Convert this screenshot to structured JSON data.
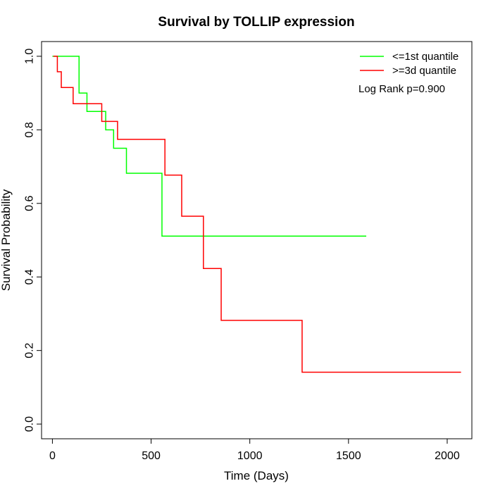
{
  "chart_data": {
    "type": "line",
    "title": "Survival by TOLLIP expression",
    "xlabel": "Time (Days)",
    "ylabel": "Survival Probability",
    "xlim": [
      -55,
      2125
    ],
    "ylim": [
      -0.04,
      1.04
    ],
    "xticks": [
      0,
      500,
      1000,
      1500,
      2000
    ],
    "xtick_labels": [
      "0",
      "500",
      "1000",
      "1500",
      "2000"
    ],
    "yticks": [
      0.0,
      0.2,
      0.4,
      0.6,
      0.8,
      1.0
    ],
    "ytick_labels": [
      "0.0",
      "0.2",
      "0.4",
      "0.6",
      "0.8",
      "1.0"
    ],
    "grid": false,
    "legend_position": "top-right",
    "annotation": "Log Rank p=0.900",
    "series": [
      {
        "name": "<=1st quantile",
        "color": "#00ff00",
        "step": true,
        "x": [
          0,
          130,
          135,
          175,
          270,
          310,
          375,
          555,
          1590
        ],
        "y": [
          1.0,
          1.0,
          0.9,
          0.85,
          0.8,
          0.75,
          0.682,
          0.511,
          0.511
        ]
      },
      {
        "name": ">=3d quantile",
        "color": "#ff0000",
        "step": true,
        "x": [
          5,
          25,
          45,
          105,
          250,
          330,
          570,
          655,
          765,
          855,
          1265,
          2070
        ],
        "y": [
          1.0,
          0.958,
          0.915,
          0.871,
          0.823,
          0.774,
          0.677,
          0.565,
          0.423,
          0.282,
          0.141,
          0.141
        ]
      }
    ]
  }
}
